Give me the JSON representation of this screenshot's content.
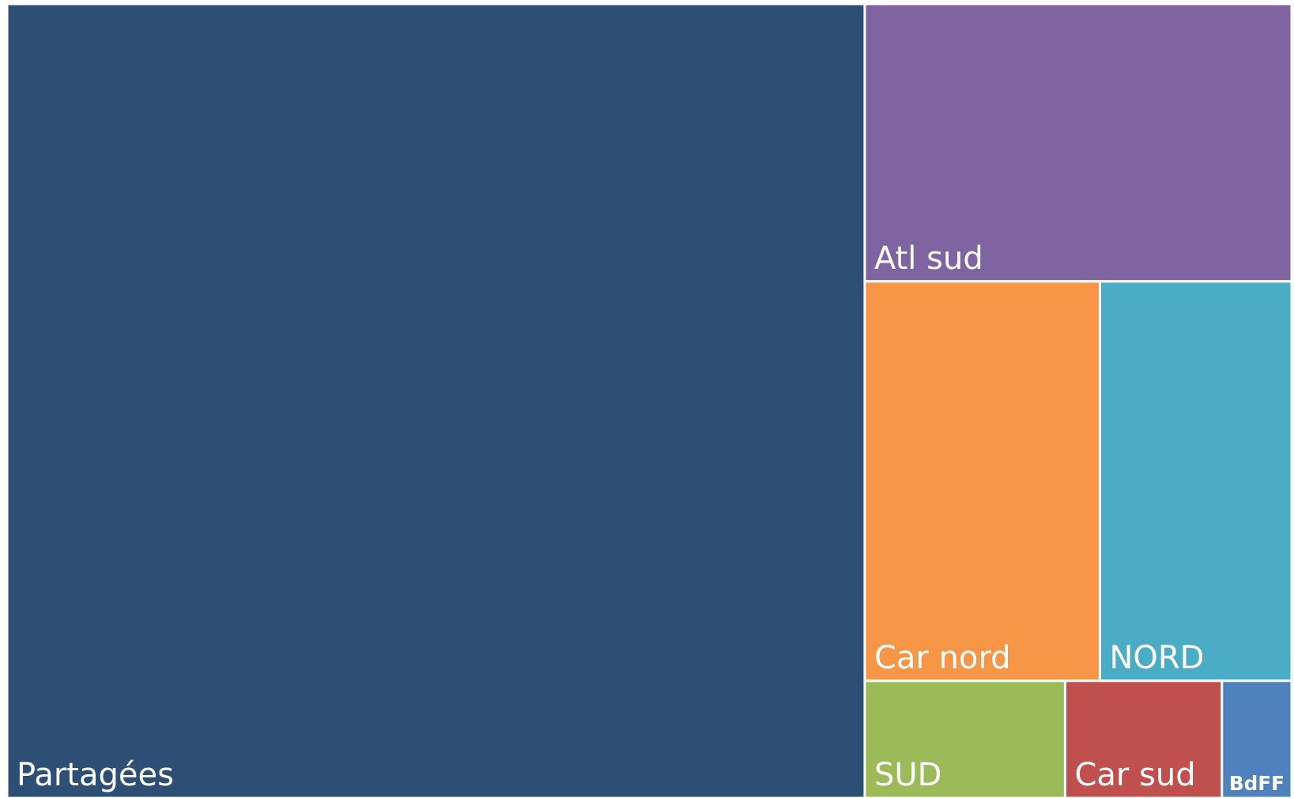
{
  "chart_data": {
    "type": "treemap",
    "categories": [
      "Partagées",
      "Atl sud",
      "Car nord",
      "NORD",
      "SUD",
      "Car sud",
      "BdFF"
    ],
    "values": [
      66.7,
      11.6,
      9.2,
      7.5,
      2.3,
      1.8,
      0.8
    ],
    "colors": [
      "#2d4f75",
      "#8064a2",
      "#f79646",
      "#4bacc6",
      "#9bbb59",
      "#c0504d",
      "#4f81bd"
    ]
  }
}
